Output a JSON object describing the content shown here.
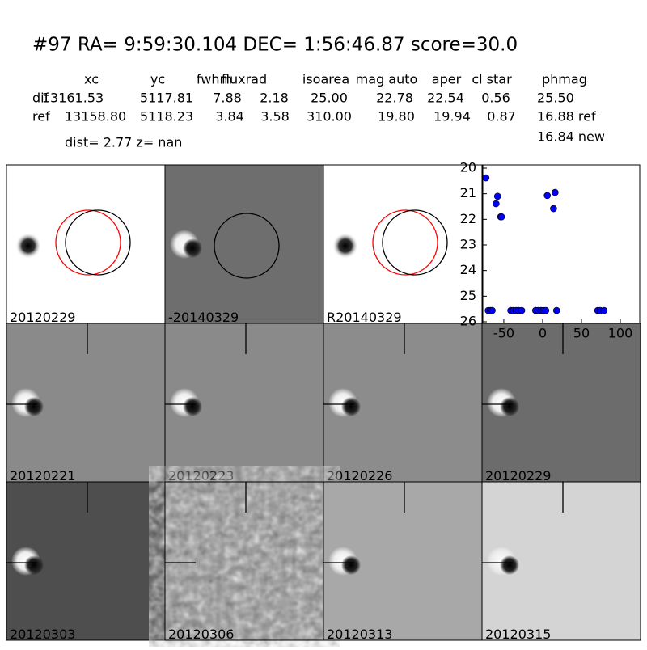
{
  "header": {
    "title": "#97   RA= 9:59:30.104 DEC= 1:56:46.87      score=30.0",
    "dist_line": "dist=  2.77      z=   nan"
  },
  "table": {
    "columns": [
      "xc",
      "yc",
      "fwhm",
      "fluxrad",
      "isoarea",
      "mag auto",
      "aper",
      "cl star",
      "phmag"
    ],
    "rows": [
      [
        "dif",
        "13161.53",
        "5117.81",
        "7.88",
        "2.18",
        "25.00",
        "22.78",
        "22.54",
        "0.56",
        "25.50"
      ],
      [
        "ref",
        "13158.80",
        "5118.23",
        "3.84",
        "3.58",
        "310.00",
        "19.80",
        "19.94",
        "0.87",
        "16.88 ref"
      ]
    ],
    "extra": "16.84 new"
  },
  "stamps": [
    {
      "label": "20120229"
    },
    {
      "label": "-20140329"
    },
    {
      "label": "R20140329"
    },
    {
      "label": "20120221"
    },
    {
      "label": "20120223"
    },
    {
      "label": "20120226"
    },
    {
      "label": "20120229",
      "color": "#ff0000"
    },
    {
      "label": "20120303"
    },
    {
      "label": "20120306"
    },
    {
      "label": "20120313"
    },
    {
      "label": "20120315"
    }
  ],
  "chart_data": {
    "type": "scatter",
    "color": "#0000ff",
    "x": [
      -73,
      -58,
      -60,
      -54,
      -53,
      6,
      16,
      14,
      -70,
      -67,
      -65,
      -41,
      -38,
      -34,
      -31,
      -27,
      -9,
      -6,
      -2,
      1,
      4,
      18,
      71,
      74,
      79
    ],
    "values": [
      20.38,
      21.1,
      21.39,
      21.9,
      21.9,
      21.07,
      20.95,
      21.58,
      25.56,
      25.56,
      25.56,
      25.56,
      25.56,
      25.56,
      25.56,
      25.56,
      25.56,
      25.56,
      25.56,
      25.56,
      25.56,
      25.56,
      25.56,
      25.56,
      25.56
    ],
    "xlim": [
      -77,
      125
    ],
    "ylim": [
      20,
      26
    ],
    "invert_y": true,
    "xticks": [
      -50,
      0,
      50,
      100
    ],
    "yticks": [
      20,
      21,
      22,
      23,
      24,
      25,
      26
    ]
  }
}
